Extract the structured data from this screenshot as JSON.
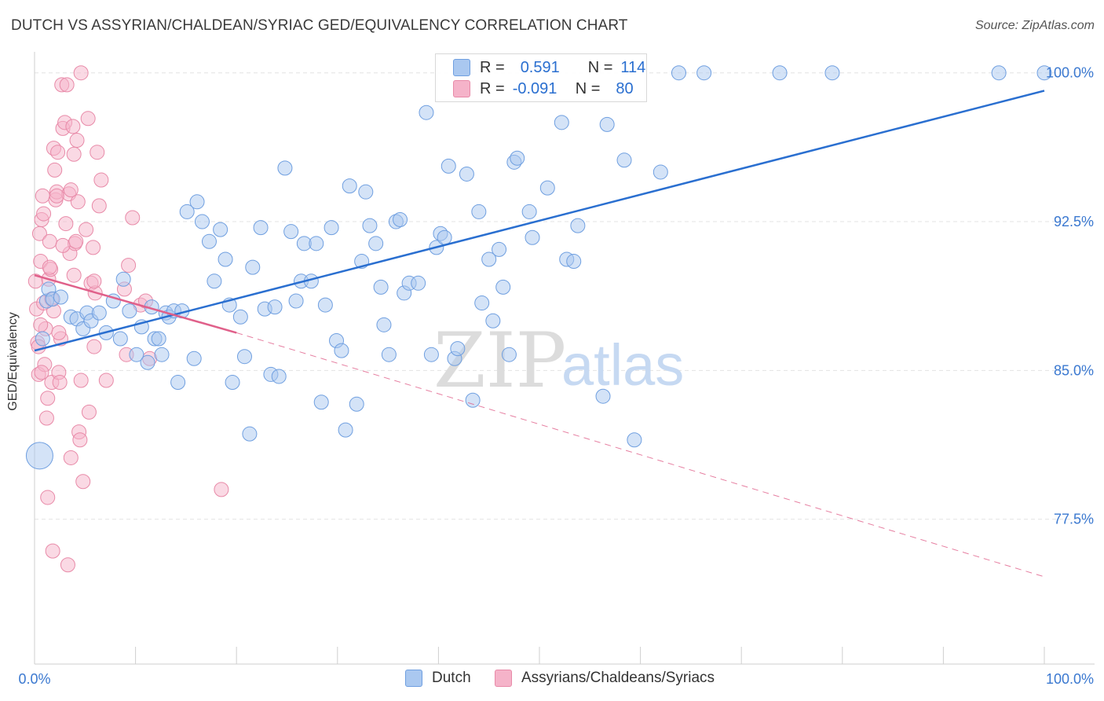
{
  "header": {
    "title": "DUTCH VS ASSYRIAN/CHALDEAN/SYRIAC GED/EQUIVALENCY CORRELATION CHART",
    "source": "Source: ZipAtlas.com"
  },
  "legend": {
    "rows": [
      {
        "r_label": "R =",
        "r_value": "0.591",
        "n_label": "N =",
        "n_value": "114"
      },
      {
        "r_label": "R =",
        "r_value": "-0.091",
        "n_label": "N =",
        "n_value": "80"
      }
    ]
  },
  "watermark": {
    "zip": "ZIP",
    "atlas": "atlas"
  },
  "colors": {
    "dutch_fill": "#aac8f0",
    "dutch_stroke": "#6f9fe0",
    "dutch_line": "#2a6fd0",
    "assyrian_fill": "#f5b3c9",
    "assyrian_stroke": "#e88aa8",
    "assyrian_line": "#e0608a",
    "grid": "#e3e3e3",
    "axis_text": "#3a78d0"
  },
  "chart_data": {
    "type": "scatter",
    "title": "DUTCH VS ASSYRIAN/CHALDEAN/SYRIAC GED/EQUIVALENCY CORRELATION CHART",
    "xlabel": "",
    "ylabel": "GED/Equivalency",
    "xlim": [
      0,
      100
    ],
    "ylim": [
      70.2,
      100.9
    ],
    "x_tick_labels": [
      "0.0%",
      "100.0%"
    ],
    "y_ticks": [
      77.5,
      85.0,
      92.5,
      100.0
    ],
    "y_tick_labels": [
      "77.5%",
      "85.0%",
      "92.5%",
      "100.0%"
    ],
    "legend_position": "top-center",
    "series": [
      {
        "name": "Dutch",
        "color": "#6f9fe0",
        "trend": {
          "x": [
            0,
            100
          ],
          "y": [
            86.0,
            99.1
          ],
          "dashed_extension": false
        },
        "points": [
          [
            0.5,
            80.7
          ],
          [
            0.8,
            86.6
          ],
          [
            1.2,
            88.5
          ],
          [
            1.4,
            89.1
          ],
          [
            1.8,
            88.6
          ],
          [
            2.6,
            88.7
          ],
          [
            3.6,
            87.7
          ],
          [
            4.2,
            87.6
          ],
          [
            4.8,
            87.1
          ],
          [
            5.2,
            87.9
          ],
          [
            5.6,
            87.5
          ],
          [
            6.4,
            87.9
          ],
          [
            7.1,
            86.9
          ],
          [
            7.8,
            88.5
          ],
          [
            8.5,
            86.6
          ],
          [
            8.8,
            89.6
          ],
          [
            9.4,
            88.0
          ],
          [
            10.1,
            85.8
          ],
          [
            10.6,
            87.2
          ],
          [
            11.2,
            85.4
          ],
          [
            11.6,
            88.2
          ],
          [
            11.9,
            86.6
          ],
          [
            12.3,
            86.6
          ],
          [
            12.6,
            85.8
          ],
          [
            13.0,
            87.9
          ],
          [
            13.3,
            87.7
          ],
          [
            13.8,
            88.0
          ],
          [
            14.2,
            84.4
          ],
          [
            14.6,
            88.0
          ],
          [
            15.1,
            93.0
          ],
          [
            15.8,
            85.6
          ],
          [
            16.1,
            93.5
          ],
          [
            16.6,
            92.5
          ],
          [
            17.3,
            91.5
          ],
          [
            17.8,
            89.5
          ],
          [
            18.4,
            92.1
          ],
          [
            18.9,
            90.6
          ],
          [
            19.3,
            88.3
          ],
          [
            19.6,
            84.4
          ],
          [
            20.4,
            87.7
          ],
          [
            20.8,
            85.7
          ],
          [
            21.3,
            81.8
          ],
          [
            21.6,
            90.2
          ],
          [
            22.4,
            92.2
          ],
          [
            22.8,
            88.1
          ],
          [
            23.4,
            84.8
          ],
          [
            23.8,
            88.2
          ],
          [
            24.2,
            84.7
          ],
          [
            24.8,
            95.2
          ],
          [
            25.4,
            92.0
          ],
          [
            25.9,
            88.5
          ],
          [
            26.4,
            89.5
          ],
          [
            26.7,
            91.4
          ],
          [
            27.4,
            89.5
          ],
          [
            27.9,
            91.4
          ],
          [
            28.4,
            83.4
          ],
          [
            28.8,
            88.3
          ],
          [
            29.4,
            92.2
          ],
          [
            29.9,
            86.5
          ],
          [
            30.4,
            86.0
          ],
          [
            30.8,
            82.0
          ],
          [
            31.2,
            94.3
          ],
          [
            31.9,
            83.3
          ],
          [
            32.4,
            90.5
          ],
          [
            32.8,
            94.0
          ],
          [
            33.2,
            92.3
          ],
          [
            33.8,
            91.4
          ],
          [
            34.3,
            89.2
          ],
          [
            34.6,
            87.3
          ],
          [
            35.1,
            85.8
          ],
          [
            35.8,
            92.5
          ],
          [
            36.2,
            92.6
          ],
          [
            36.6,
            88.9
          ],
          [
            37.1,
            89.4
          ],
          [
            38.0,
            89.4
          ],
          [
            38.8,
            98.0
          ],
          [
            39.3,
            85.8
          ],
          [
            39.8,
            91.2
          ],
          [
            40.2,
            91.9
          ],
          [
            40.6,
            91.7
          ],
          [
            41.0,
            95.3
          ],
          [
            41.6,
            85.6
          ],
          [
            41.9,
            86.1
          ],
          [
            42.8,
            94.9
          ],
          [
            43.4,
            83.5
          ],
          [
            44.0,
            93.0
          ],
          [
            44.3,
            88.4
          ],
          [
            45.0,
            90.6
          ],
          [
            45.4,
            87.5
          ],
          [
            46.0,
            91.1
          ],
          [
            46.4,
            89.2
          ],
          [
            47.0,
            85.8
          ],
          [
            47.5,
            95.5
          ],
          [
            47.8,
            95.7
          ],
          [
            49.0,
            93.0
          ],
          [
            49.3,
            91.7
          ],
          [
            50.8,
            94.2
          ],
          [
            52.2,
            97.5
          ],
          [
            52.7,
            90.6
          ],
          [
            53.4,
            90.5
          ],
          [
            53.8,
            92.3
          ],
          [
            56.3,
            83.7
          ],
          [
            56.7,
            97.4
          ],
          [
            58.4,
            95.6
          ],
          [
            59.4,
            81.5
          ],
          [
            62.0,
            95.0
          ],
          [
            63.8,
            100.0
          ],
          [
            66.3,
            100.0
          ],
          [
            73.8,
            100.0
          ],
          [
            79.0,
            100.0
          ],
          [
            95.5,
            100.0
          ],
          [
            100.0,
            100.0
          ]
        ]
      },
      {
        "name": "Assyrians/Chaldeans/Syriacs",
        "color": "#e88aa8",
        "trend": {
          "x": [
            0,
            20
          ],
          "y": [
            89.8,
            86.9
          ],
          "dashed_to": [
            100,
            74.6
          ]
        },
        "points": [
          [
            0.1,
            89.5
          ],
          [
            0.2,
            88.1
          ],
          [
            0.3,
            86.4
          ],
          [
            0.4,
            84.8
          ],
          [
            0.5,
            91.9
          ],
          [
            0.6,
            90.5
          ],
          [
            0.7,
            92.6
          ],
          [
            0.8,
            93.8
          ],
          [
            0.9,
            88.4
          ],
          [
            1.0,
            85.3
          ],
          [
            1.1,
            87.1
          ],
          [
            1.2,
            82.6
          ],
          [
            1.3,
            78.6
          ],
          [
            1.4,
            89.6
          ],
          [
            1.5,
            91.5
          ],
          [
            1.6,
            90.1
          ],
          [
            1.7,
            84.4
          ],
          [
            1.8,
            75.9
          ],
          [
            1.9,
            96.2
          ],
          [
            2.0,
            95.1
          ],
          [
            2.1,
            93.6
          ],
          [
            2.2,
            94.0
          ],
          [
            2.3,
            96.0
          ],
          [
            2.4,
            84.9
          ],
          [
            2.5,
            84.4
          ],
          [
            2.6,
            86.6
          ],
          [
            2.7,
            99.4
          ],
          [
            2.8,
            97.2
          ],
          [
            3.0,
            97.5
          ],
          [
            3.2,
            99.4
          ],
          [
            3.3,
            75.2
          ],
          [
            3.4,
            93.9
          ],
          [
            3.5,
            90.9
          ],
          [
            3.6,
            80.6
          ],
          [
            3.8,
            97.3
          ],
          [
            3.9,
            95.9
          ],
          [
            4.0,
            91.4
          ],
          [
            4.1,
            91.5
          ],
          [
            4.2,
            96.6
          ],
          [
            4.3,
            93.5
          ],
          [
            4.4,
            81.9
          ],
          [
            4.5,
            81.5
          ],
          [
            4.6,
            100.0
          ],
          [
            4.8,
            79.4
          ],
          [
            5.1,
            92.1
          ],
          [
            5.3,
            97.7
          ],
          [
            5.4,
            82.9
          ],
          [
            5.6,
            89.4
          ],
          [
            5.8,
            91.2
          ],
          [
            5.9,
            86.2
          ],
          [
            6.0,
            88.9
          ],
          [
            6.2,
            96.0
          ],
          [
            6.4,
            93.3
          ],
          [
            6.6,
            94.6
          ],
          [
            7.1,
            84.5
          ],
          [
            8.9,
            89.1
          ],
          [
            9.1,
            85.8
          ],
          [
            9.3,
            90.3
          ],
          [
            9.7,
            92.7
          ],
          [
            10.5,
            88.3
          ],
          [
            11.0,
            88.5
          ],
          [
            11.4,
            85.6
          ],
          [
            18.5,
            79.0
          ],
          [
            0.4,
            86.2
          ],
          [
            0.7,
            84.9
          ],
          [
            1.5,
            90.2
          ],
          [
            1.9,
            88.0
          ],
          [
            2.2,
            93.8
          ],
          [
            3.1,
            92.4
          ],
          [
            4.6,
            84.5
          ],
          [
            5.9,
            89.5
          ],
          [
            0.9,
            92.9
          ],
          [
            1.7,
            88.6
          ],
          [
            2.8,
            91.3
          ],
          [
            3.6,
            94.1
          ],
          [
            1.3,
            83.6
          ],
          [
            2.4,
            86.9
          ],
          [
            0.6,
            87.3
          ],
          [
            3.9,
            89.8
          ]
        ]
      }
    ]
  },
  "bottom_legend": {
    "items": [
      {
        "label": "Dutch"
      },
      {
        "label": "Assyrians/Chaldeans/Syriacs"
      }
    ]
  }
}
